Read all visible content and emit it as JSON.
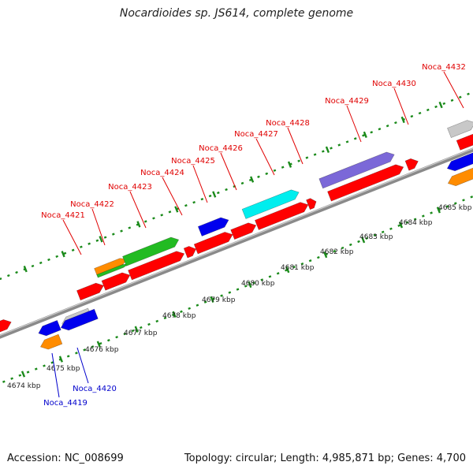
{
  "title": "Nocardioides sp. JS614, complete genome",
  "footer": {
    "accession": "Accession: NC_008699",
    "stats": "Topology: circular; Length: 4,985,871 bp; Genes: 4,700"
  },
  "colors": {
    "forward_label": "#e00000",
    "reverse_label": "#0000cc",
    "tick": "#1a8a1a",
    "backbone": "#8a8a8a"
  },
  "scale_labels": [
    "4674 kbp",
    "4675 kbp",
    "4676 kbp",
    "4677 kbp",
    "4678 kbp",
    "4679 kbp",
    "4680 kbp",
    "4681 kbp",
    "4682 kbp",
    "4683 kbp",
    "4684 kbp",
    "4685 kbp"
  ],
  "forward_gene_labels": [
    "Noca_4421",
    "Noca_4422",
    "Noca_4423",
    "Noca_4424",
    "Noca_4425",
    "Noca_4426",
    "Noca_4427",
    "Noca_4428",
    "Noca_4429",
    "Noca_4430",
    "Noca_4432"
  ],
  "reverse_gene_labels": [
    "Noca_4420",
    "Noca_4419"
  ],
  "cog_colors": [
    "#ff0000",
    "#ff8c00",
    "#22bb22",
    "#0000ee",
    "#00eeee",
    "#7b68d8",
    "#c8c8c8"
  ]
}
